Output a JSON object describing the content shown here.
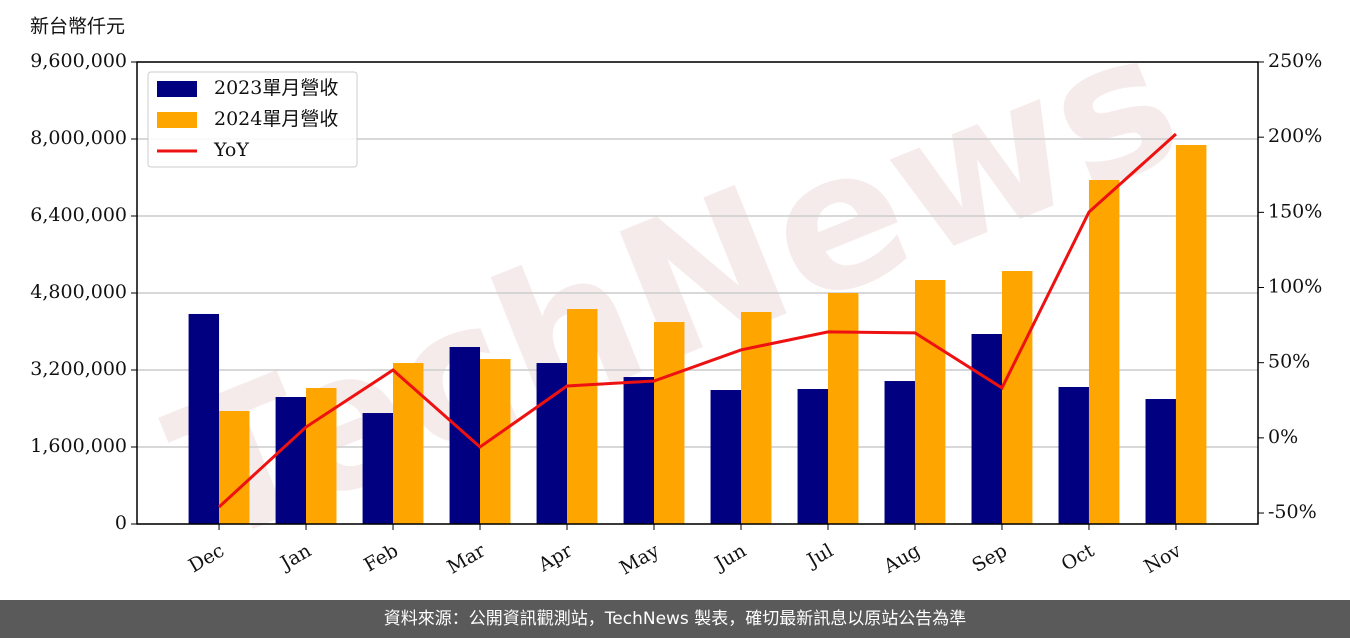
{
  "chart_data": {
    "type": "bar_line",
    "y_axis_label": "新台幣仟元",
    "watermark": "TechNews",
    "categories": [
      "Dec",
      "Jan",
      "Feb",
      "Mar",
      "Apr",
      "May",
      "Jun",
      "Jul",
      "Aug",
      "Sep",
      "Oct",
      "Nov"
    ],
    "series": [
      {
        "name": "2023單月營收",
        "type": "bar",
        "color": "#000080",
        "values": [
          4364000,
          2639000,
          2306000,
          3678000,
          3345000,
          3054000,
          2784000,
          2805000,
          2971000,
          3948000,
          2847000,
          2597000
        ]
      },
      {
        "name": "2024單月營收",
        "type": "bar",
        "color": "#ffa500",
        "values": [
          2348000,
          2826000,
          3345000,
          3428000,
          4467000,
          4197000,
          4405000,
          4800000,
          5070000,
          5257000,
          7148000,
          7875000
        ]
      },
      {
        "name": "YoY",
        "type": "line",
        "axis": "y2",
        "color": "#ee1111",
        "values": [
          -46.0,
          7.2,
          45.1,
          -6.1,
          34.5,
          37.8,
          58.5,
          70.5,
          69.8,
          33.2,
          150.2,
          202.1
        ]
      }
    ],
    "ylim": [
      0,
      9600000
    ],
    "yticks": [
      0,
      {
        "value": 1600000,
        "label": "1,600,000"
      },
      {
        "value": 3200000,
        "label": "3,200,000"
      },
      {
        "value": 4800000,
        "label": "4,800,000"
      },
      {
        "value": 6400000,
        "label": "6,400,000"
      },
      {
        "value": 8000000,
        "label": "8,000,000"
      },
      {
        "value": 9600000,
        "label": "9,600,000"
      }
    ],
    "y2lim": [
      -57.3,
      250
    ],
    "y2ticks": [
      {
        "value": -50,
        "label": "-50%"
      },
      {
        "value": 0,
        "label": "0%"
      },
      {
        "value": 50,
        "label": "50%"
      },
      {
        "value": 100,
        "label": "100%"
      },
      {
        "value": 150,
        "label": "150%"
      },
      {
        "value": 200,
        "label": "200%"
      },
      {
        "value": 250,
        "label": "250%"
      }
    ],
    "grid": true,
    "legend": "upper-left",
    "source": "資料來源：公開資訊觀測站，TechNews 製表，確切最新訊息以原站公告為準"
  }
}
